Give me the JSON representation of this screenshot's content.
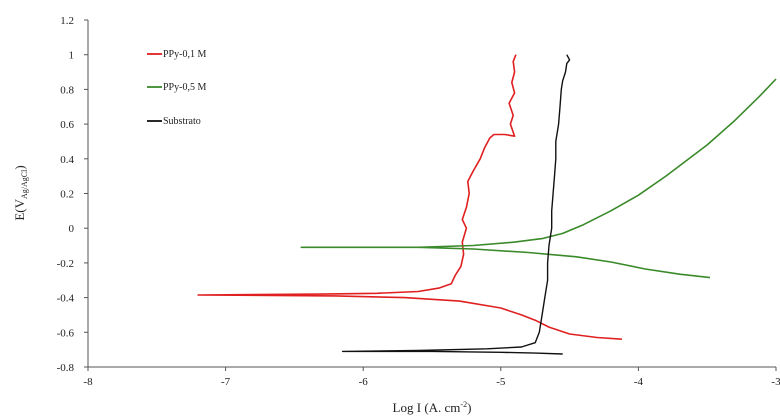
{
  "chart_data": {
    "type": "line",
    "xlabel_main": "Log I (A. cm",
    "xlabel_sup": "-2",
    "xlabel_close": ")",
    "ylabel_main": "E(V",
    "ylabel_sub": "Ag/AgCl",
    "ylabel_close": ")",
    "xlim": [
      -8,
      -3
    ],
    "ylim": [
      -0.8,
      1.2
    ],
    "x_ticks": [
      -8,
      -7,
      -6,
      -5,
      -4,
      -3
    ],
    "x_tick_labels": [
      "-8",
      "-7",
      "-6",
      "-5",
      "-4",
      "-3"
    ],
    "y_ticks": [
      -0.8,
      -0.6,
      -0.4,
      -0.2,
      0,
      0.2,
      0.4,
      0.6,
      0.8,
      1,
      1.2
    ],
    "y_tick_labels": [
      "-0.8",
      "-0.6",
      "-0.4",
      "-0.2",
      "0",
      "0.2",
      "0.4",
      "0.6",
      "0.8",
      "1",
      "1.2"
    ],
    "grid": false,
    "legend_position": "top-left",
    "series": [
      {
        "name": "PPy-0,1 M",
        "color": "#e02020",
        "points": [
          [
            -4.12,
            -0.64
          ],
          [
            -4.3,
            -0.63
          ],
          [
            -4.5,
            -0.61
          ],
          [
            -4.65,
            -0.57
          ],
          [
            -4.75,
            -0.53
          ],
          [
            -4.85,
            -0.5
          ],
          [
            -5.0,
            -0.46
          ],
          [
            -5.3,
            -0.42
          ],
          [
            -5.7,
            -0.4
          ],
          [
            -6.2,
            -0.39
          ],
          [
            -7.2,
            -0.385
          ],
          [
            -6.3,
            -0.38
          ],
          [
            -5.9,
            -0.375
          ],
          [
            -5.6,
            -0.365
          ],
          [
            -5.45,
            -0.345
          ],
          [
            -5.36,
            -0.32
          ],
          [
            -5.33,
            -0.27
          ],
          [
            -5.29,
            -0.22
          ],
          [
            -5.27,
            -0.15
          ],
          [
            -5.28,
            -0.08
          ],
          [
            -5.25,
            0.0
          ],
          [
            -5.28,
            0.05
          ],
          [
            -5.25,
            0.12
          ],
          [
            -5.23,
            0.2
          ],
          [
            -5.24,
            0.27
          ],
          [
            -5.2,
            0.33
          ],
          [
            -5.15,
            0.4
          ],
          [
            -5.12,
            0.46
          ],
          [
            -5.08,
            0.52
          ],
          [
            -5.05,
            0.54
          ],
          [
            -4.97,
            0.54
          ],
          [
            -4.9,
            0.53
          ],
          [
            -4.93,
            0.6
          ],
          [
            -4.91,
            0.65
          ],
          [
            -4.94,
            0.72
          ],
          [
            -4.9,
            0.78
          ],
          [
            -4.92,
            0.84
          ],
          [
            -4.9,
            0.9
          ],
          [
            -4.91,
            0.96
          ],
          [
            -4.89,
            1.0
          ]
        ]
      },
      {
        "name": "PPy-0,5 M",
        "color": "#3a8a2a",
        "points": [
          [
            -3.48,
            -0.285
          ],
          [
            -3.7,
            -0.265
          ],
          [
            -3.95,
            -0.235
          ],
          [
            -4.2,
            -0.195
          ],
          [
            -4.45,
            -0.165
          ],
          [
            -4.8,
            -0.14
          ],
          [
            -5.2,
            -0.12
          ],
          [
            -5.6,
            -0.11
          ],
          [
            -6.45,
            -0.11
          ],
          [
            -5.6,
            -0.11
          ],
          [
            -5.2,
            -0.1
          ],
          [
            -4.9,
            -0.08
          ],
          [
            -4.7,
            -0.06
          ],
          [
            -4.55,
            -0.03
          ],
          [
            -4.4,
            0.02
          ],
          [
            -4.2,
            0.1
          ],
          [
            -4.0,
            0.19
          ],
          [
            -3.8,
            0.3
          ],
          [
            -3.5,
            0.48
          ],
          [
            -3.3,
            0.62
          ],
          [
            -3.12,
            0.76
          ],
          [
            -3.0,
            0.86
          ]
        ]
      },
      {
        "name": "Substrato",
        "color": "#111111",
        "points": [
          [
            -4.55,
            -0.725
          ],
          [
            -4.75,
            -0.72
          ],
          [
            -5.0,
            -0.715
          ],
          [
            -5.5,
            -0.71
          ],
          [
            -6.15,
            -0.71
          ],
          [
            -5.6,
            -0.705
          ],
          [
            -5.1,
            -0.695
          ],
          [
            -4.85,
            -0.685
          ],
          [
            -4.75,
            -0.66
          ],
          [
            -4.72,
            -0.6
          ],
          [
            -4.7,
            -0.5
          ],
          [
            -4.68,
            -0.4
          ],
          [
            -4.66,
            -0.3
          ],
          [
            -4.66,
            -0.2
          ],
          [
            -4.65,
            -0.1
          ],
          [
            -4.63,
            0.0
          ],
          [
            -4.63,
            0.1
          ],
          [
            -4.62,
            0.2
          ],
          [
            -4.61,
            0.3
          ],
          [
            -4.6,
            0.4
          ],
          [
            -4.6,
            0.5
          ],
          [
            -4.58,
            0.6
          ],
          [
            -4.57,
            0.7
          ],
          [
            -4.56,
            0.8
          ],
          [
            -4.55,
            0.85
          ],
          [
            -4.53,
            0.9
          ],
          [
            -4.52,
            0.95
          ],
          [
            -4.5,
            0.97
          ],
          [
            -4.52,
            1.0
          ]
        ]
      }
    ]
  }
}
